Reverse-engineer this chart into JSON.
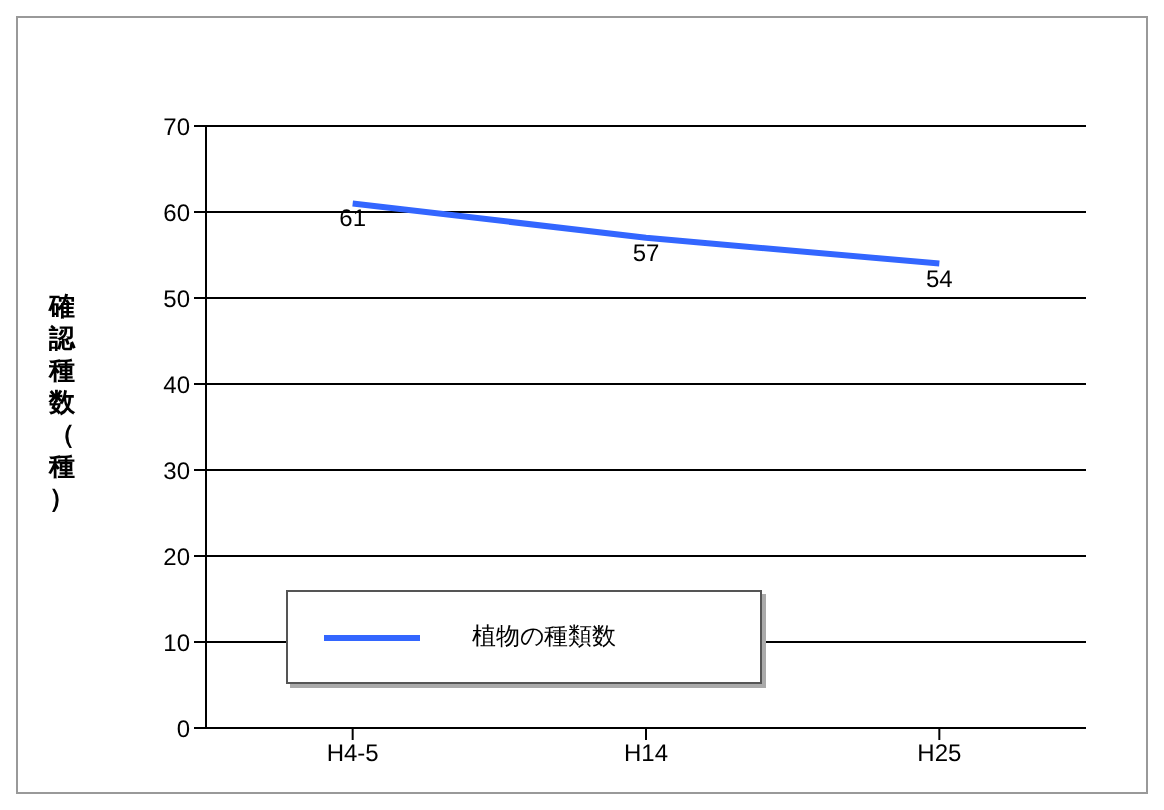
{
  "chart_data": {
    "type": "line",
    "ylabel": "確認種数（種）",
    "categories": [
      "H4-5",
      "H14",
      "H25"
    ],
    "series": [
      {
        "name": "植物の種類数",
        "color": "#3366ff",
        "values": [
          61,
          57,
          54
        ]
      }
    ],
    "ylim": [
      0,
      70
    ],
    "yticks": [
      0,
      10,
      20,
      30,
      40,
      50,
      60,
      70
    ],
    "grid": "y",
    "legend": "bottom left",
    "marker": "none",
    "data_labels": true
  }
}
